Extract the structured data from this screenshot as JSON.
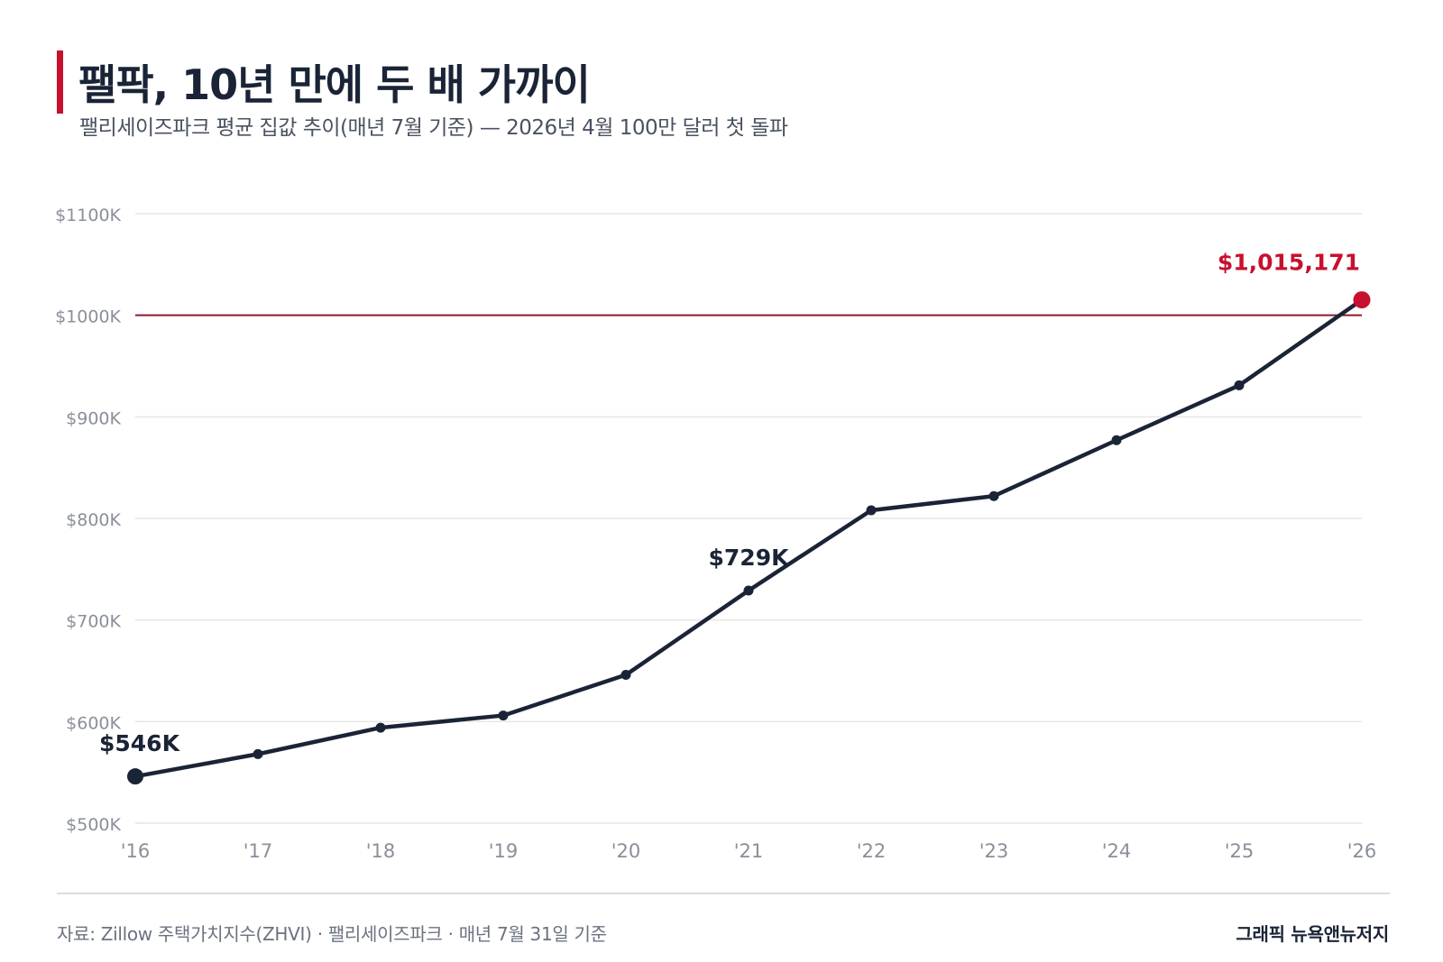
{
  "title": "팰팍, 10년 만에 두 배 가까이",
  "subtitle": "팰리세이즈파크 평균 집값 추이(매년 7월 기준) — 2026년 4월 100만 달러 첫 돌파",
  "footer": {
    "source": "자료: Zillow 주택가치지수(ZHVI) · 팰리세이즈파크 · 매년 7월 31일 기준",
    "credit": "그래픽 뉴욕앤뉴저지"
  },
  "colors": {
    "line": "#1a2436",
    "accent": "#c8102e",
    "grid": "#e6e6e6",
    "tick": "#8a8f99"
  },
  "chart_data": {
    "type": "line",
    "categories": [
      "'16",
      "'17",
      "'18",
      "'19",
      "'20",
      "'21",
      "'22",
      "'23",
      "'24",
      "'25",
      "'26"
    ],
    "values": [
      546000,
      568000,
      594000,
      606000,
      646000,
      729000,
      808000,
      822000,
      877000,
      931000,
      1015171
    ],
    "ylim": [
      500000,
      1100000
    ],
    "yticks": [
      {
        "value": 500000,
        "label": "$500K"
      },
      {
        "value": 600000,
        "label": "$600K"
      },
      {
        "value": 700000,
        "label": "$700K"
      },
      {
        "value": 800000,
        "label": "$800K"
      },
      {
        "value": 900000,
        "label": "$900K"
      },
      {
        "value": 1000000,
        "label": "$1000K"
      },
      {
        "value": 1100000,
        "label": "$1100K"
      }
    ],
    "reference_line": 1000000,
    "grid": true,
    "annotations": [
      {
        "index": 0,
        "text": "$546K"
      },
      {
        "index": 5,
        "text": "$729K"
      },
      {
        "index": 10,
        "text": "$1,015,171",
        "highlight": true
      }
    ]
  }
}
